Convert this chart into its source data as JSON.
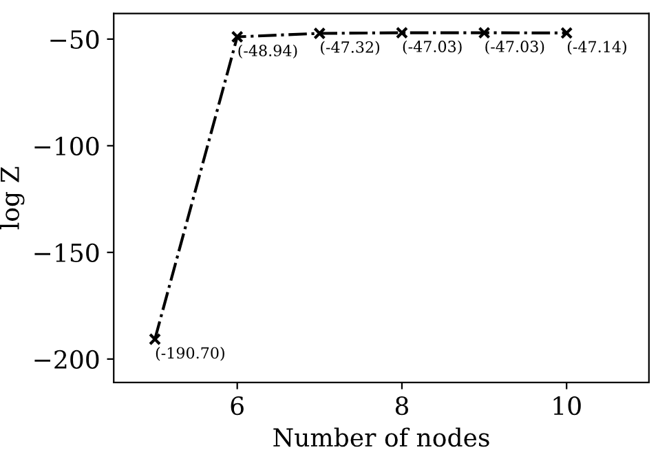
{
  "chart_data": {
    "type": "line",
    "xlabel": "Number of nodes",
    "ylabel": "log Z",
    "x": [
      5,
      6,
      7,
      8,
      9,
      10
    ],
    "series": [
      {
        "color": "#000000",
        "values": [
          -190.7,
          -48.94,
          -47.32,
          -47.03,
          -47.03,
          -47.14
        ],
        "value_labels": [
          "(-190.70)",
          "(-48.94)",
          "(-47.32)",
          "(-47.03)",
          "(-47.03)",
          "(-47.14)"
        ]
      }
    ],
    "xlim": [
      4.5,
      11
    ],
    "xticks": [
      6,
      8,
      10
    ],
    "ylim": [
      -211,
      -38
    ],
    "yticks": [
      {
        "value": -200,
        "label": "−200"
      },
      {
        "value": -150,
        "label": "−150"
      },
      {
        "value": -100,
        "label": "−100"
      },
      {
        "value": -50,
        "label": "−50"
      }
    ],
    "marker": "cross",
    "line_style": "dashdot",
    "grid": false,
    "legend": false
  }
}
